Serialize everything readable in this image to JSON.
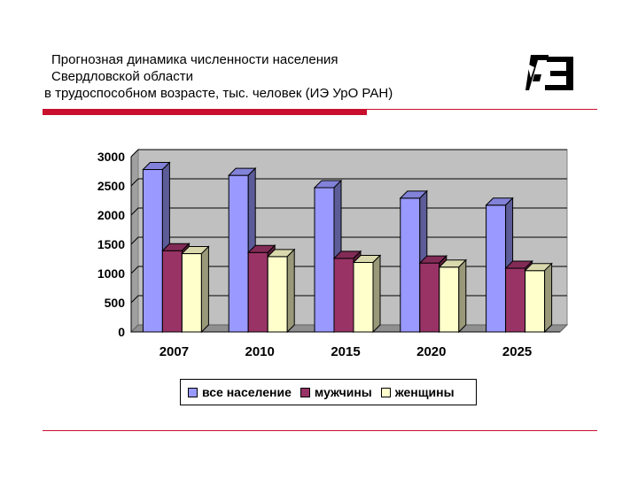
{
  "slide": {
    "title_lines": [
      "Прогнозная динамика численности населения",
      "Свердловской области",
      "в трудоспособном возрасте, тыс. человек (ИЭ УрО РАН)"
    ]
  },
  "colors": {
    "accent_rule": "#c8102e"
  },
  "chart_data": {
    "type": "bar",
    "categories": [
      "2007",
      "2010",
      "2015",
      "2020",
      "2025"
    ],
    "series": [
      {
        "name": "все население",
        "values": [
          2780,
          2680,
          2470,
          2290,
          2170
        ],
        "color": "#9999ff"
      },
      {
        "name": "мужчины",
        "values": [
          1390,
          1360,
          1260,
          1180,
          1090
        ],
        "color": "#993366"
      },
      {
        "name": "женщины",
        "values": [
          1340,
          1290,
          1190,
          1110,
          1050
        ],
        "color": "#ffffcc"
      }
    ],
    "yticks": [
      0,
      500,
      1000,
      1500,
      2000,
      2500,
      3000
    ],
    "ylim": [
      0,
      3000
    ],
    "title": "",
    "xlabel": "",
    "ylabel": "",
    "grid": true,
    "legend_position": "bottom",
    "style": "3d-bar"
  }
}
